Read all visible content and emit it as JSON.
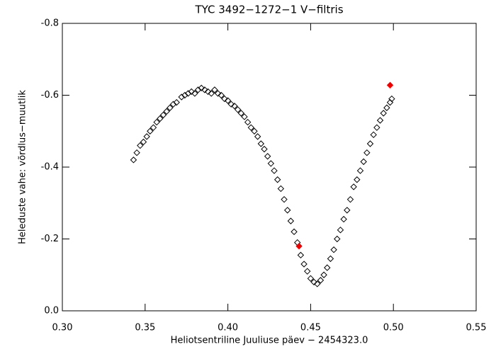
{
  "chart_data": {
    "type": "scatter",
    "title": "TYC 3492−1272−1 V−filtris",
    "x_label": "Heliotsentriline Juuliuse päev − 2454323.0",
    "y_label": "Heleduste vahe: võrdlus−muutlik",
    "xlim": [
      0.3,
      0.55
    ],
    "ylim": [
      0.0,
      -0.8
    ],
    "xticks": [
      {
        "value": 0.3,
        "label": "0.30"
      },
      0.35,
      {
        "value": 0.4,
        "label": "0.40"
      },
      0.45,
      {
        "value": 0.5,
        "label": "0.50"
      },
      0.55
    ],
    "yticks": [
      {
        "value": 0,
        "label": "0.0"
      },
      -0.2,
      -0.4,
      -0.6,
      -0.8
    ],
    "series": [
      {
        "color": "#000000",
        "x": [
          0.343,
          0.345,
          0.347,
          0.349,
          0.351,
          0.353,
          0.355,
          0.357,
          0.359,
          0.361,
          0.363,
          0.365,
          0.367,
          0.369,
          0.372,
          0.374,
          0.376,
          0.378,
          0.38,
          0.382,
          0.384,
          0.386,
          0.388,
          0.39,
          0.392,
          0.394,
          0.396,
          0.398,
          0.4,
          0.402,
          0.404,
          0.406,
          0.408,
          0.41,
          0.412,
          0.414,
          0.416,
          0.418,
          0.42,
          0.422,
          0.424,
          0.426,
          0.428,
          0.43,
          0.432,
          0.434,
          0.436,
          0.438,
          0.44,
          0.442,
          0.444,
          0.446,
          0.448,
          0.45,
          0.452,
          0.454,
          0.456,
          0.458,
          0.46,
          0.462,
          0.464,
          0.466,
          0.468,
          0.47,
          0.472,
          0.474,
          0.476,
          0.478,
          0.48,
          0.482,
          0.484,
          0.486,
          0.488,
          0.49,
          0.492,
          0.494,
          0.496,
          0.498,
          0.499
        ],
        "values": [
          -0.42,
          -0.44,
          -0.46,
          -0.47,
          -0.485,
          -0.5,
          -0.51,
          -0.525,
          -0.535,
          -0.545,
          -0.555,
          -0.565,
          -0.575,
          -0.58,
          -0.595,
          -0.6,
          -0.605,
          -0.61,
          -0.605,
          -0.615,
          -0.62,
          -0.615,
          -0.61,
          -0.605,
          -0.615,
          -0.605,
          -0.6,
          -0.59,
          -0.585,
          -0.575,
          -0.57,
          -0.56,
          -0.55,
          -0.54,
          -0.525,
          -0.51,
          -0.5,
          -0.485,
          -0.465,
          -0.45,
          -0.43,
          -0.41,
          -0.39,
          -0.365,
          -0.34,
          -0.31,
          -0.28,
          -0.25,
          -0.22,
          -0.19,
          -0.155,
          -0.13,
          -0.11,
          -0.09,
          -0.08,
          -0.075,
          -0.085,
          -0.1,
          -0.12,
          -0.145,
          -0.17,
          -0.2,
          -0.225,
          -0.255,
          -0.28,
          -0.31,
          -0.345,
          -0.365,
          -0.39,
          -0.415,
          -0.44,
          -0.465,
          -0.49,
          -0.51,
          -0.53,
          -0.55,
          -0.565,
          -0.58,
          -0.59
        ]
      },
      {
        "color": "#ee0000",
        "x": [
          0.443,
          0.498
        ],
        "values": [
          -0.18,
          -0.628
        ]
      }
    ]
  }
}
